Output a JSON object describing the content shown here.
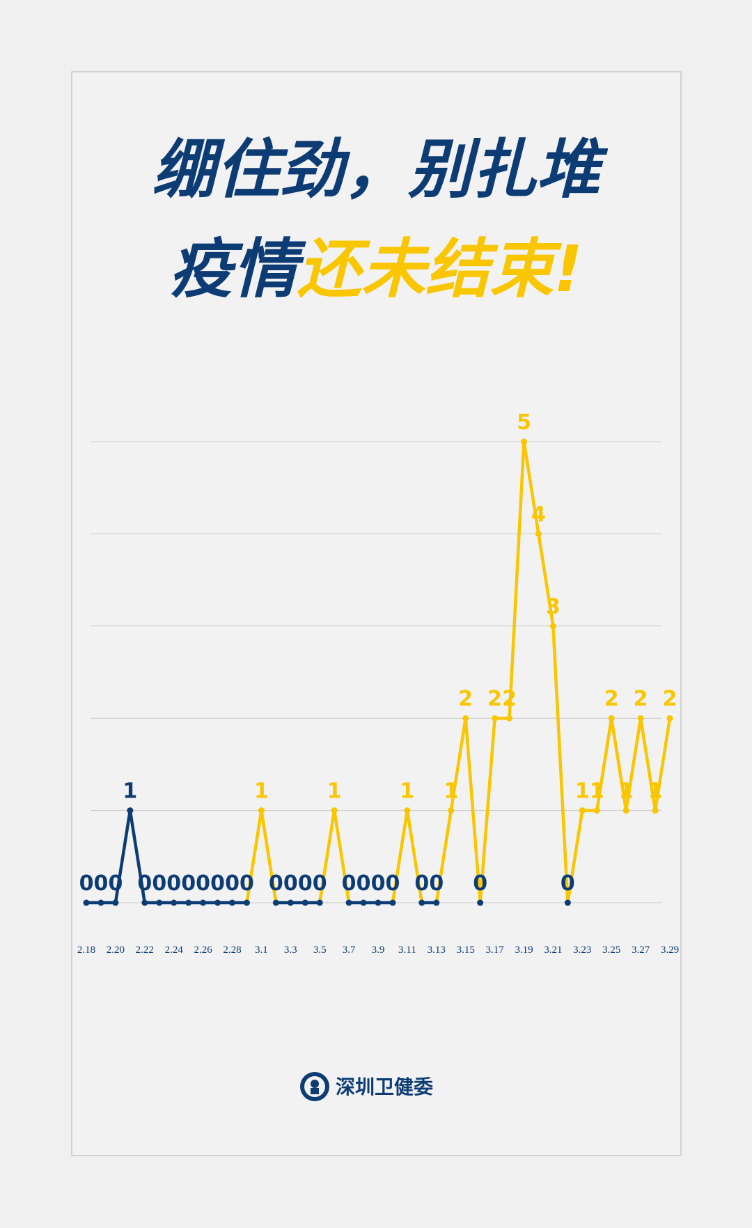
{
  "chart_data": {
    "type": "line",
    "title": "绷住劲，别扎堆",
    "subtitle": [
      "疫情",
      "还未结束!"
    ],
    "title_colors": [
      "#0d3c74",
      "#f9c600"
    ],
    "categories": [
      "2.18",
      null,
      "2.20",
      null,
      "2.22",
      null,
      "2.24",
      null,
      "2.26",
      null,
      "2.28",
      null,
      "3.1",
      null,
      "3.3",
      null,
      "3.5",
      null,
      "3.7",
      null,
      "3.9",
      null,
      "3.11",
      null,
      "3.13",
      null,
      "3.15",
      null,
      "3.17",
      null,
      "3.19",
      null,
      "3.21",
      null,
      "3.23",
      null,
      "3.25",
      null,
      "3.27",
      null,
      "3.29"
    ],
    "values": [
      0,
      0,
      0,
      1,
      0,
      0,
      0,
      0,
      0,
      0,
      0,
      0,
      1,
      0,
      0,
      0,
      0,
      1,
      0,
      0,
      0,
      0,
      1,
      0,
      0,
      1,
      2,
      0,
      2,
      2,
      5,
      4,
      3,
      0,
      1,
      1,
      2,
      1,
      2,
      1,
      2
    ],
    "point_colors": [
      "#0d3c74",
      "#0d3c74",
      "#0d3c74",
      "#0d3c74",
      "#0d3c74",
      "#0d3c74",
      "#0d3c74",
      "#0d3c74",
      "#0d3c74",
      "#0d3c74",
      "#0d3c74",
      "#0d3c74",
      "#f9c600",
      "#0d3c74",
      "#0d3c74",
      "#0d3c74",
      "#0d3c74",
      "#f9c600",
      "#0d3c74",
      "#0d3c74",
      "#0d3c74",
      "#0d3c74",
      "#f9c600",
      "#0d3c74",
      "#0d3c74",
      "#f9c600",
      "#f9c600",
      "#0d3c74",
      "#f9c600",
      "#f9c600",
      "#f9c600",
      "#f9c600",
      "#f9c600",
      "#0d3c74",
      "#f9c600",
      "#f9c600",
      "#f9c600",
      "#f9c600",
      "#f9c600",
      "#f9c600",
      "#f9c600"
    ],
    "ylim": [
      0,
      5
    ],
    "yticks": [
      0,
      1,
      2,
      3,
      4,
      5
    ],
    "grid": true
  },
  "footer": "深圳卫健委"
}
